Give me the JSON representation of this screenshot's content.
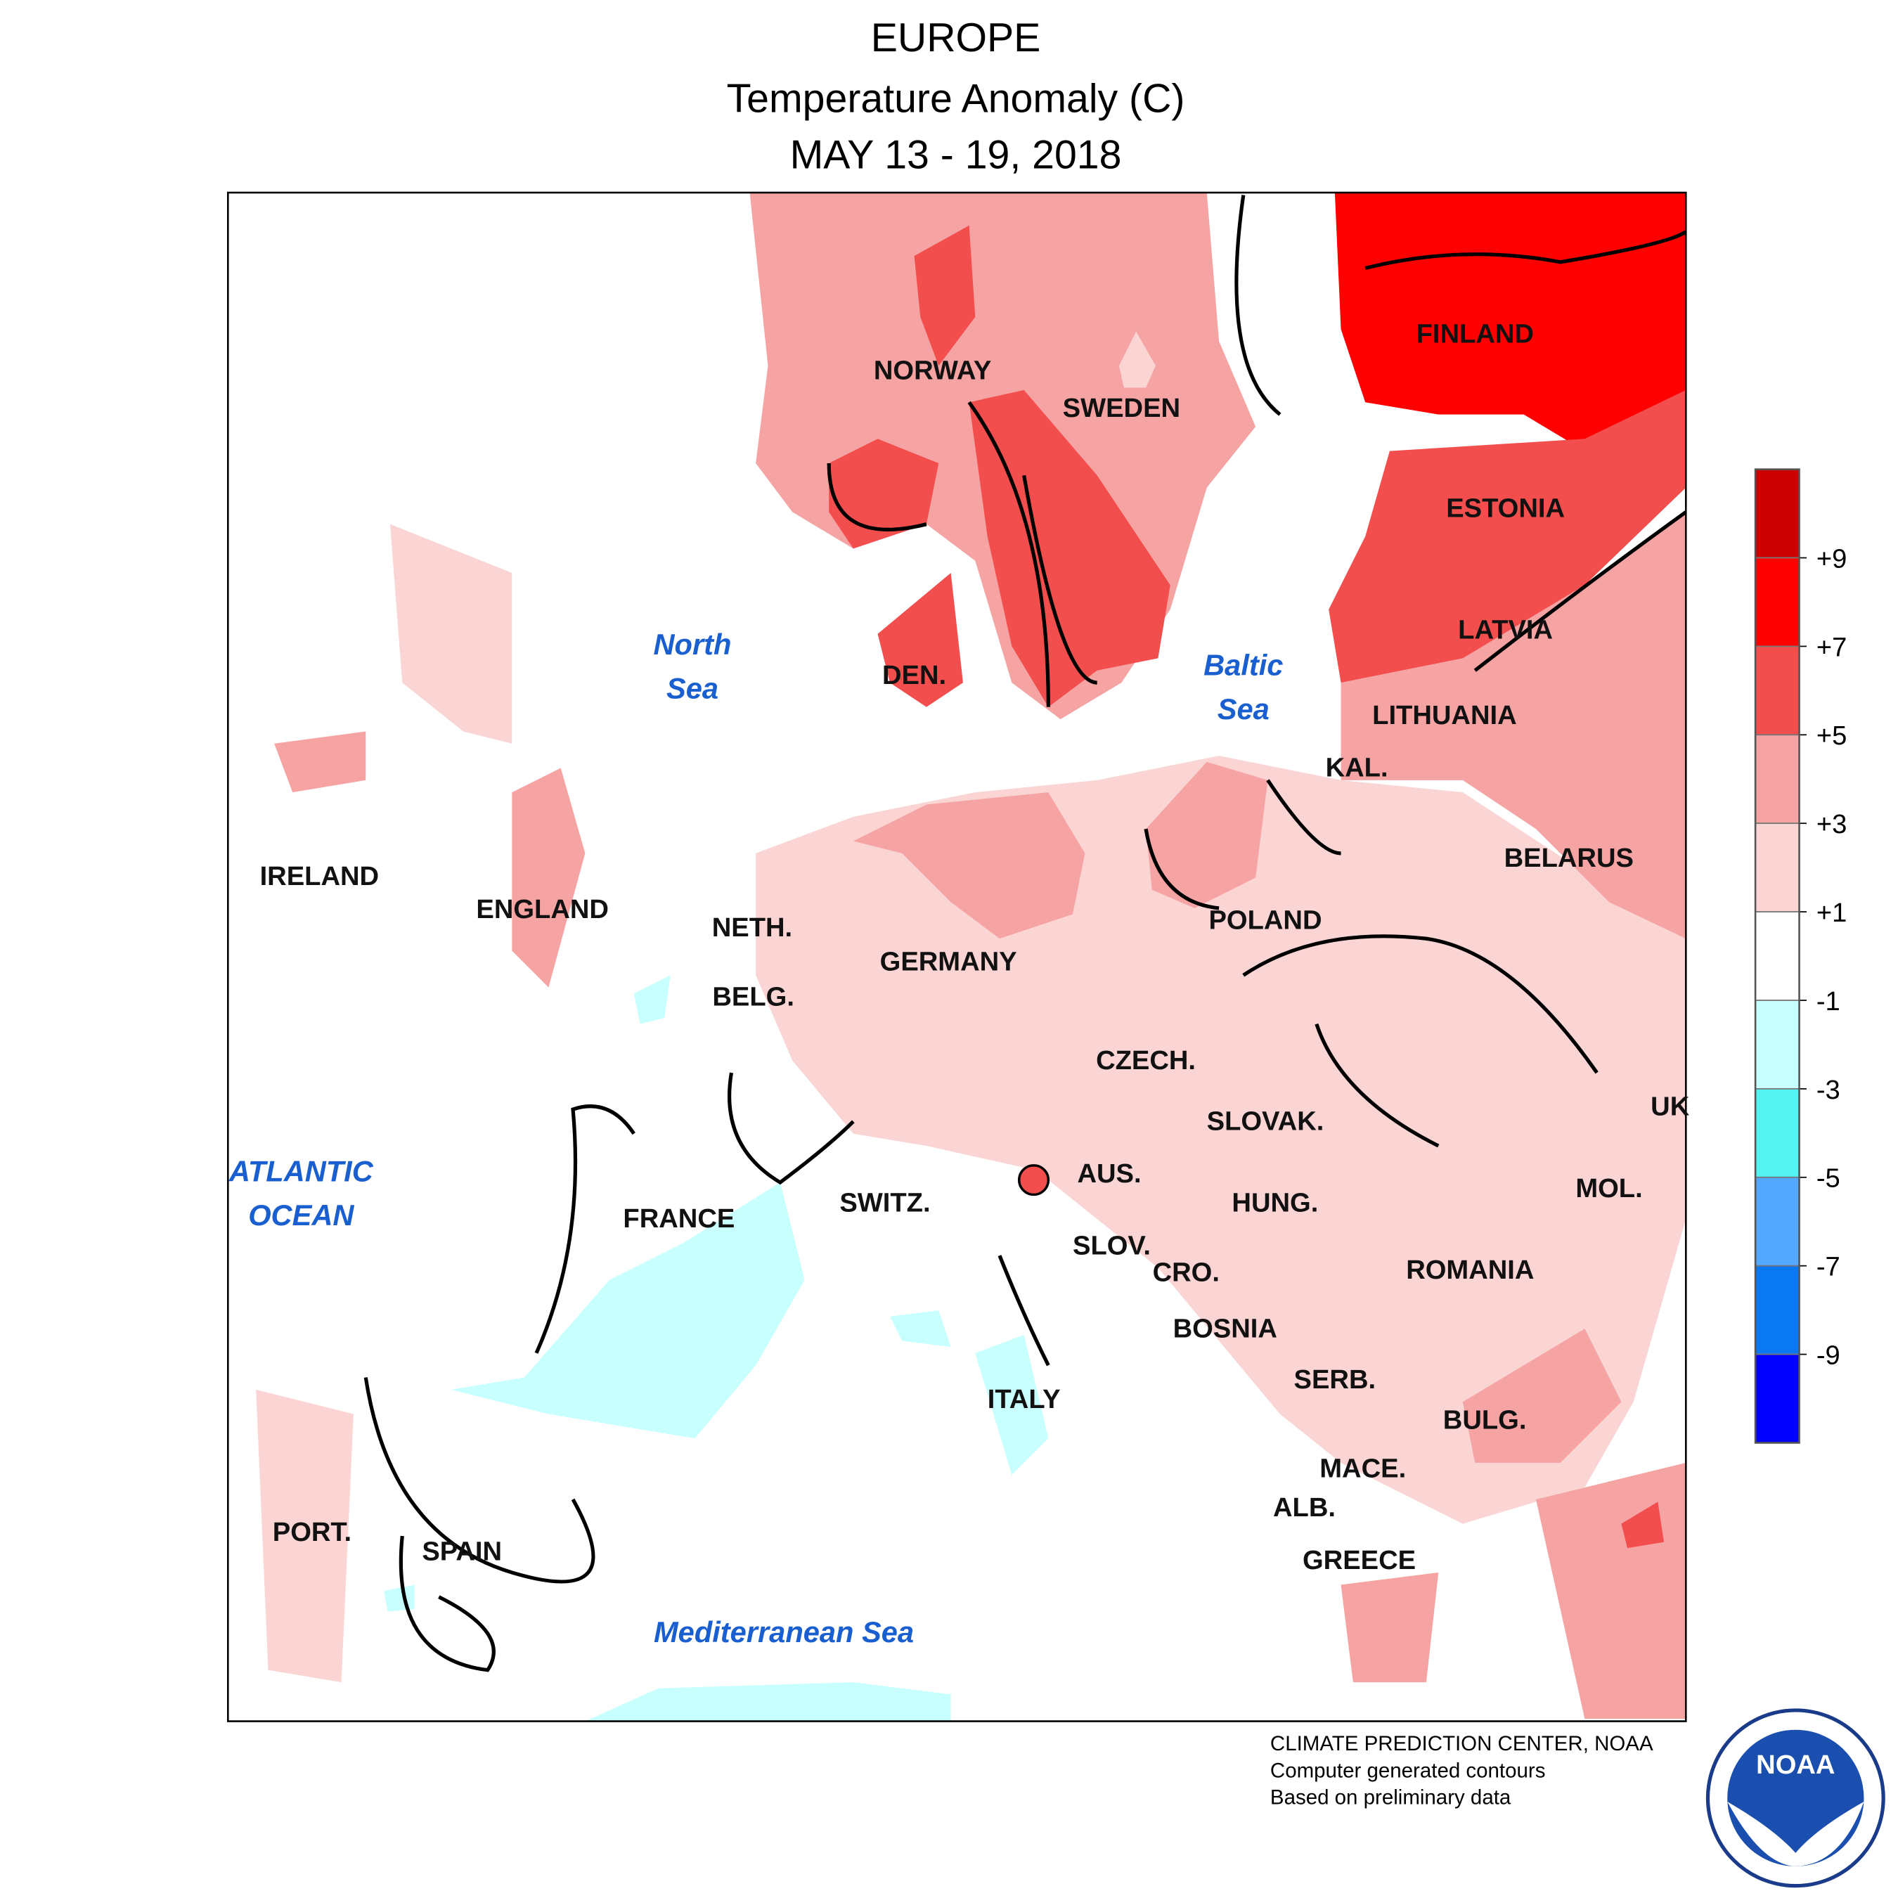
{
  "header": {
    "region": "EUROPE",
    "variable": "Temperature Anomaly (C)",
    "period": "MAY 13 - 19, 2018"
  },
  "countries": [
    "NORWAY",
    "SWEDEN",
    "FINLAND",
    "ESTONIA",
    "LATVIA",
    "LITHUANIA",
    "KAL.",
    "DEN.",
    "IRELAND",
    "ENGLAND",
    "NETH.",
    "BELG.",
    "GERMANY",
    "POLAND",
    "BELARUS",
    "CZECH.",
    "SLOVAK.",
    "UK",
    "AUS.",
    "HUNG.",
    "MOL.",
    "SWITZ.",
    "FRANCE",
    "SLOV.",
    "CRO.",
    "ROMANIA",
    "BOSNIA",
    "SERB.",
    "BULG.",
    "ITALY",
    "MACE.",
    "ALB.",
    "GREECE",
    "PORT.",
    "SPAIN"
  ],
  "seas": [
    {
      "lines": [
        "North",
        "Sea"
      ]
    },
    {
      "lines": [
        "Baltic",
        "Sea"
      ]
    },
    {
      "lines": [
        "ATLANTIC",
        "OCEAN"
      ]
    },
    {
      "lines": [
        "Mediterranean Sea"
      ]
    }
  ],
  "legend": {
    "colors": [
      "#cc0000",
      "#ff0000",
      "#f24e4e",
      "#f6a3a3",
      "#fbd4d4",
      "#ffffff",
      "#c8ffff",
      "#55f2f2",
      "#55a8ff",
      "#0a78f0",
      "#0000ff"
    ],
    "ticks": [
      {
        "value": 9,
        "label": "+9"
      },
      {
        "value": 7,
        "label": "+7"
      },
      {
        "value": 5,
        "label": "+5"
      },
      {
        "value": 3,
        "label": "+3"
      },
      {
        "value": 1,
        "label": "+1"
      },
      -1,
      -3,
      -5,
      -7,
      -9
    ]
  },
  "credits": [
    "CLIMATE PREDICTION CENTER, NOAA",
    "Computer generated contours",
    "Based on preliminary data"
  ],
  "logo": "NOAA"
}
